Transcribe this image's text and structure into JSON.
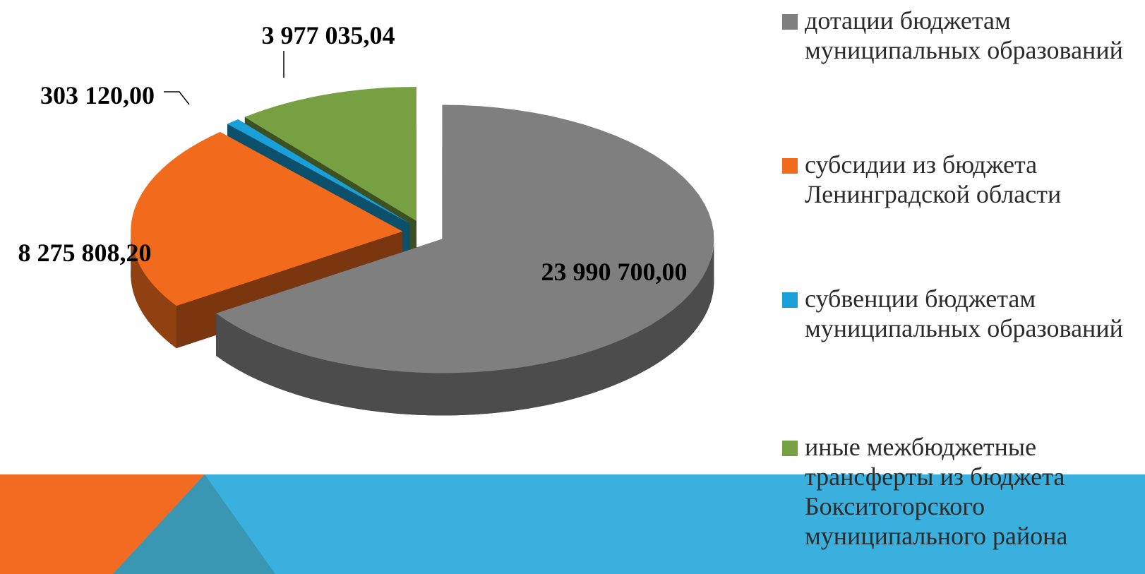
{
  "chart_data": {
    "type": "pie",
    "series": [
      {
        "name": "дотации бюджетам муниципальных образований",
        "color": "#7f7f7f",
        "values": [
          23990700.0
        ],
        "value_labels": [
          "23 990 700,00"
        ]
      },
      {
        "name": "субсидии из бюджета Ленинградской области",
        "color": "#f26b1d",
        "values": [
          8275808.2
        ],
        "value_labels": [
          "8 275 808,20"
        ]
      },
      {
        "name": "субвенции бюджетам муниципальных образований",
        "color": "#1aa0d8",
        "values": [
          303120.0
        ],
        "value_labels": [
          "303 120,00"
        ]
      },
      {
        "name": "иные межбюджетные трансферты из бюджета Бокситогорского муниципального района",
        "color": "#77a043",
        "values": [
          3977035.04
        ],
        "value_labels": [
          "3 977 035,04"
        ]
      }
    ],
    "legend": "right"
  }
}
